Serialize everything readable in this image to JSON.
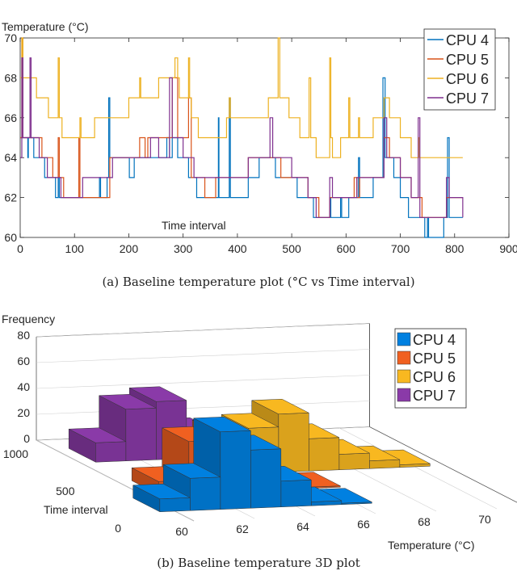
{
  "chart_data": [
    {
      "type": "line",
      "title": "",
      "ylabel": "Temperature (°C)",
      "xlabel": "Time interval",
      "xlim": [
        0,
        900
      ],
      "ylim": [
        60,
        70
      ],
      "xticks": [
        "0",
        "100",
        "200",
        "300",
        "400",
        "500",
        "600",
        "700",
        "800",
        "900"
      ],
      "yticks": [
        "60",
        "62",
        "64",
        "66",
        "68",
        "70"
      ],
      "legend_position": "top-right",
      "grid": false,
      "series": [
        {
          "name": "CPU 4",
          "color": "#0072BD",
          "points": [
            [
              0,
              65
            ],
            [
              13,
              65
            ],
            [
              14,
              64
            ],
            [
              15,
              65
            ],
            [
              25,
              64
            ],
            [
              45,
              63
            ],
            [
              65,
              62
            ],
            [
              70,
              63
            ],
            [
              72,
              62
            ],
            [
              80,
              62
            ],
            [
              145,
              62
            ],
            [
              146,
              63
            ],
            [
              148,
              62
            ],
            [
              160,
              63
            ],
            [
              163,
              67
            ],
            [
              165,
              64
            ],
            [
              200,
              64
            ],
            [
              201,
              63
            ],
            [
              210,
              64
            ],
            [
              270,
              65
            ],
            [
              275,
              64
            ],
            [
              280,
              65
            ],
            [
              290,
              64
            ],
            [
              310,
              63
            ],
            [
              325,
              62
            ],
            [
              365,
              66
            ],
            [
              366,
              62
            ],
            [
              385,
              67
            ],
            [
              387,
              62
            ],
            [
              420,
              63
            ],
            [
              440,
              64
            ],
            [
              470,
              63
            ],
            [
              510,
              62
            ],
            [
              540,
              61
            ],
            [
              570,
              62
            ],
            [
              572,
              61
            ],
            [
              590,
              62
            ],
            [
              592,
              61
            ],
            [
              605,
              62
            ],
            [
              623,
              64
            ],
            [
              625,
              62
            ],
            [
              650,
              63
            ],
            [
              668,
              68
            ],
            [
              672,
              64
            ],
            [
              688,
              63
            ],
            [
              700,
              62
            ],
            [
              715,
              61
            ],
            [
              745,
              60
            ],
            [
              750,
              61
            ],
            [
              752,
              60
            ],
            [
              780,
              61
            ],
            [
              787,
              65
            ],
            [
              790,
              61
            ],
            [
              815,
              61
            ]
          ]
        },
        {
          "name": "CPU 5",
          "color": "#D95319",
          "points": [
            [
              0,
              65
            ],
            [
              3,
              70
            ],
            [
              5,
              65
            ],
            [
              40,
              64
            ],
            [
              60,
              63
            ],
            [
              70,
              65
            ],
            [
              72,
              63
            ],
            [
              80,
              62
            ],
            [
              108,
              65
            ],
            [
              110,
              62
            ],
            [
              120,
              62
            ],
            [
              165,
              64
            ],
            [
              220,
              65
            ],
            [
              230,
              64
            ],
            [
              235,
              65
            ],
            [
              280,
              68
            ],
            [
              290,
              65
            ],
            [
              310,
              67
            ],
            [
              315,
              63
            ],
            [
              340,
              62
            ],
            [
              360,
              63
            ],
            [
              420,
              64
            ],
            [
              470,
              64
            ],
            [
              480,
              63
            ],
            [
              530,
              62
            ],
            [
              550,
              61
            ],
            [
              570,
              62
            ],
            [
              615,
              63
            ],
            [
              620,
              62
            ],
            [
              625,
              63
            ],
            [
              670,
              65
            ],
            [
              680,
              64
            ],
            [
              700,
              63
            ],
            [
              720,
              62
            ],
            [
              740,
              61
            ],
            [
              785,
              62
            ],
            [
              815,
              62
            ]
          ]
        },
        {
          "name": "CPU 6",
          "color": "#EDB120",
          "points": [
            [
              0,
              68
            ],
            [
              3,
              70
            ],
            [
              5,
              68
            ],
            [
              30,
              67
            ],
            [
              52,
              66
            ],
            [
              70,
              69
            ],
            [
              72,
              66
            ],
            [
              77,
              65
            ],
            [
              110,
              66
            ],
            [
              112,
              65
            ],
            [
              137,
              66
            ],
            [
              200,
              67
            ],
            [
              220,
              68
            ],
            [
              222,
              67
            ],
            [
              255,
              68
            ],
            [
              285,
              69
            ],
            [
              290,
              68
            ],
            [
              293,
              67
            ],
            [
              310,
              69
            ],
            [
              312,
              67
            ],
            [
              315,
              66
            ],
            [
              328,
              65
            ],
            [
              380,
              66
            ],
            [
              385,
              67
            ],
            [
              387,
              66
            ],
            [
              457,
              67
            ],
            [
              475,
              70
            ],
            [
              478,
              67
            ],
            [
              495,
              66
            ],
            [
              515,
              65
            ],
            [
              532,
              68
            ],
            [
              535,
              65
            ],
            [
              545,
              64
            ],
            [
              570,
              69
            ],
            [
              572,
              65
            ],
            [
              575,
              64
            ],
            [
              590,
              65
            ],
            [
              605,
              67
            ],
            [
              607,
              65
            ],
            [
              623,
              66
            ],
            [
              625,
              65
            ],
            [
              650,
              66
            ],
            [
              670,
              67
            ],
            [
              680,
              66
            ],
            [
              700,
              65
            ],
            [
              720,
              64
            ],
            [
              733,
              65
            ],
            [
              735,
              64
            ],
            [
              815,
              64
            ]
          ]
        },
        {
          "name": "CPU 7",
          "color": "#7E2F8E",
          "points": [
            [
              0,
              64
            ],
            [
              3,
              69
            ],
            [
              5,
              65
            ],
            [
              18,
              69
            ],
            [
              20,
              65
            ],
            [
              35,
              64
            ],
            [
              50,
              63
            ],
            [
              75,
              62
            ],
            [
              115,
              63
            ],
            [
              160,
              63
            ],
            [
              170,
              64
            ],
            [
              200,
              64
            ],
            [
              240,
              65
            ],
            [
              255,
              64
            ],
            [
              275,
              68
            ],
            [
              280,
              65
            ],
            [
              290,
              65
            ],
            [
              300,
              64
            ],
            [
              320,
              63
            ],
            [
              380,
              63
            ],
            [
              420,
              64
            ],
            [
              460,
              66
            ],
            [
              465,
              64
            ],
            [
              500,
              63
            ],
            [
              530,
              62
            ],
            [
              545,
              61
            ],
            [
              570,
              63
            ],
            [
              575,
              62
            ],
            [
              620,
              63
            ],
            [
              670,
              66
            ],
            [
              675,
              64
            ],
            [
              700,
              63
            ],
            [
              720,
              62
            ],
            [
              733,
              66
            ],
            [
              736,
              61
            ],
            [
              785,
              63
            ],
            [
              790,
              62
            ],
            [
              815,
              61
            ]
          ]
        }
      ]
    },
    {
      "type": "bar3d",
      "title": "",
      "zlabel": "Frequency",
      "xlabel": "Temperature (°C)",
      "ylabel": "Time interval",
      "xticks": [
        "60",
        "62",
        "64",
        "66",
        "68",
        "70"
      ],
      "yticks": [
        "0",
        "500",
        "1000"
      ],
      "zticks": [
        "0",
        "20",
        "40",
        "60",
        "80"
      ],
      "zlim": [
        0,
        80
      ],
      "legend_position": "top-right",
      "temperatures": [
        60,
        61,
        62,
        63,
        64,
        65,
        66,
        67,
        68,
        69,
        70
      ],
      "series": [
        {
          "name": "CPU 4",
          "color": "#0080E0",
          "values": [
            10,
            25,
            60,
            45,
            20,
            3,
            1,
            0,
            0,
            0,
            0
          ]
        },
        {
          "name": "CPU 5",
          "color": "#F06020",
          "values": [
            0,
            10,
            40,
            45,
            30,
            5,
            1,
            0,
            0,
            0,
            0
          ]
        },
        {
          "name": "CPU 6",
          "color": "#F8B820",
          "values": [
            0,
            0,
            0,
            0,
            15,
            35,
            45,
            25,
            12,
            6,
            2
          ]
        },
        {
          "name": "CPU 7",
          "color": "#8A3AA8",
          "values": [
            0,
            15,
            40,
            45,
            20,
            3,
            0,
            0,
            0,
            0,
            0
          ]
        }
      ]
    }
  ],
  "captions": {
    "a": "(a)  Baseline temperature plot (°C vs Time interval)",
    "b": "(b)  Baseline temperature 3D plot"
  }
}
